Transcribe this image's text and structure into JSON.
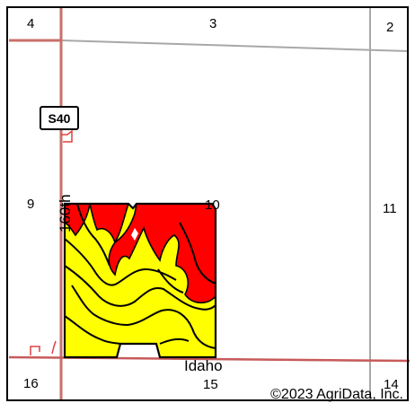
{
  "map": {
    "section_labels": [
      "4",
      "3",
      "2",
      "9",
      "10",
      "11",
      "16",
      "15",
      "14"
    ],
    "road_labels": {
      "vertical_road": "160th",
      "horizontal_road": "Idaho",
      "highway_shield": "S40"
    },
    "copyright": "©2023 AgriData, Inc.",
    "colors": {
      "section_line": "#a8a8a8",
      "road": "#c85a5a",
      "soil_yellow": "#ffff00",
      "soil_red": "#ff0000",
      "contour": "#000000",
      "frame": "#000000"
    }
  }
}
